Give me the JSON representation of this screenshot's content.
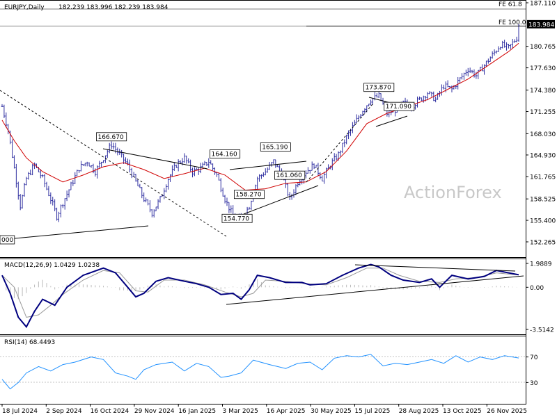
{
  "header": {
    "symbol_timeframe": "EURJPY,Daily",
    "ohlc": "182.239 183.996 182.239 183.984"
  },
  "colors": {
    "background": "#ffffff",
    "candle": "#2e2ea0",
    "ma": "#d00000",
    "macd_line": "#00007f",
    "signal_line": "#999999",
    "rsi_line": "#1e90ff",
    "trendline": "#000000",
    "price_tag_bg": "#000000",
    "price_tag_fg": "#ffffff",
    "watermark": "#c8c8c8"
  },
  "watermark": "ActionForex",
  "chart_data": [
    {
      "type": "line",
      "panel": "price",
      "title": "EURJPY,Daily",
      "ylim": [
        152.265,
        187.11
      ],
      "y_ticks": [
        "187.110",
        "183.984",
        "180.765",
        "177.630",
        "174.380",
        "171.255",
        "168.030",
        "164.930",
        "161.765",
        "158.525",
        "155.400",
        "152.265"
      ],
      "current_price": "183.984",
      "x_dates": [
        "18 Jul 2024",
        "2 Sep 2024",
        "16 Oct 2024",
        "29 Nov 2024",
        "16 Jan 2025",
        "3 Mar 2025",
        "16 Apr 2025",
        "30 May 2025",
        "15 Jul 2025",
        "28 Aug 2025",
        "13 Oct 2025",
        "26 Nov 2025"
      ],
      "series": [
        {
          "type": "close",
          "points": [
            [
              0,
              172.0
            ],
            [
              3,
              168.5
            ],
            [
              6,
              163.0
            ],
            [
              9,
              157.5
            ],
            [
              12,
              161.5
            ],
            [
              16,
              163.5
            ],
            [
              20,
              161.5
            ],
            [
              24,
              158.5
            ],
            [
              27,
              156.0
            ],
            [
              30,
              158.0
            ],
            [
              34,
              160.5
            ],
            [
              38,
              163.0
            ],
            [
              42,
              164.0
            ],
            [
              46,
              162.5
            ],
            [
              50,
              164.5
            ],
            [
              54,
              166.5
            ],
            [
              58,
              165.0
            ],
            [
              62,
              163.5
            ],
            [
              66,
              161.0
            ],
            [
              70,
              158.5
            ],
            [
              74,
              156.5
            ],
            [
              78,
              158.5
            ],
            [
              82,
              161.5
            ],
            [
              86,
              163.5
            ],
            [
              90,
              164.5
            ],
            [
              94,
              162.5
            ],
            [
              98,
              163.0
            ],
            [
              102,
              164.0
            ],
            [
              106,
              162.0
            ],
            [
              110,
              158.5
            ],
            [
              114,
              156.0
            ],
            [
              118,
              155.5
            ],
            [
              122,
              157.5
            ],
            [
              126,
              161.5
            ],
            [
              130,
              162.5
            ],
            [
              134,
              164.0
            ],
            [
              138,
              162.0
            ],
            [
              142,
              158.5
            ],
            [
              146,
              161.0
            ],
            [
              150,
              162.5
            ],
            [
              154,
              163.5
            ],
            [
              158,
              161.5
            ],
            [
              162,
              163.5
            ],
            [
              166,
              165.0
            ],
            [
              170,
              167.5
            ],
            [
              174,
              169.5
            ],
            [
              178,
              171.5
            ],
            [
              182,
              173.0
            ],
            [
              186,
              173.5
            ],
            [
              190,
              171.0
            ],
            [
              194,
              171.5
            ],
            [
              198,
              172.5
            ],
            [
              202,
              172.0
            ],
            [
              206,
              173.0
            ],
            [
              210,
              174.0
            ],
            [
              214,
              173.0
            ],
            [
              218,
              175.0
            ],
            [
              222,
              174.5
            ],
            [
              226,
              176.0
            ],
            [
              230,
              177.5
            ],
            [
              234,
              176.5
            ],
            [
              238,
              178.0
            ],
            [
              242,
              179.5
            ],
            [
              246,
              181.0
            ],
            [
              250,
              180.5
            ],
            [
              254,
              182.0
            ],
            [
              255,
              183.984
            ]
          ]
        },
        {
          "type": "ma",
          "points": [
            [
              0,
              170.0
            ],
            [
              6,
              167.0
            ],
            [
              12,
              164.5
            ],
            [
              20,
              162.5
            ],
            [
              30,
              161.0
            ],
            [
              40,
              162.0
            ],
            [
              50,
              163.2
            ],
            [
              60,
              163.8
            ],
            [
              70,
              162.8
            ],
            [
              80,
              161.5
            ],
            [
              90,
              162.2
            ],
            [
              100,
              163.0
            ],
            [
              110,
              162.0
            ],
            [
              120,
              159.8
            ],
            [
              130,
              160.0
            ],
            [
              140,
              160.8
            ],
            [
              150,
              161.0
            ],
            [
              160,
              162.5
            ],
            [
              170,
              165.5
            ],
            [
              180,
              169.5
            ],
            [
              190,
              171.0
            ],
            [
              200,
              172.0
            ],
            [
              210,
              173.0
            ],
            [
              220,
              174.5
            ],
            [
              230,
              176.0
            ],
            [
              240,
              178.0
            ],
            [
              250,
              180.0
            ],
            [
              255,
              181.2
            ]
          ]
        }
      ],
      "annotations": [
        {
          "label": "166.670",
          "x": 54,
          "y": 166.67
        },
        {
          "label": "164.160",
          "x": 110,
          "y": 164.16
        },
        {
          "label": "165.190",
          "x": 135,
          "y": 165.19
        },
        {
          "label": "161.060",
          "x": 142,
          "y": 161.06
        },
        {
          "label": "158.270",
          "x": 122,
          "y": 158.27
        },
        {
          "label": "154.770",
          "x": 116,
          "y": 154.77
        },
        {
          "label": "173.870",
          "x": 186,
          "y": 173.87
        },
        {
          "label": "171.090",
          "x": 196,
          "y": 171.09
        },
        {
          "label": "FE 61.8",
          "x": 254,
          "y": 187.2
        },
        {
          "label": "FE 100.0",
          "x": 254,
          "y": 184.2
        },
        {
          "label": "000",
          "x": 0,
          "y": 154.9
        }
      ]
    },
    {
      "type": "line",
      "panel": "macd",
      "title": "MACD(12,26,9) 1.0429 1.0238",
      "ylim": [
        -3.5142,
        1.9889
      ],
      "y_ticks": [
        "1.9889",
        "0.00",
        "-3.5142"
      ],
      "series": [
        {
          "name": "MACD",
          "points": [
            [
              0,
              1.0
            ],
            [
              4,
              -0.5
            ],
            [
              8,
              -2.5
            ],
            [
              12,
              -3.3
            ],
            [
              16,
              -2.0
            ],
            [
              20,
              -1.0
            ],
            [
              26,
              -1.5
            ],
            [
              32,
              0.0
            ],
            [
              40,
              1.0
            ],
            [
              50,
              1.6
            ],
            [
              56,
              1.2
            ],
            [
              62,
              0.0
            ],
            [
              66,
              -0.8
            ],
            [
              70,
              -0.5
            ],
            [
              76,
              0.5
            ],
            [
              82,
              0.8
            ],
            [
              90,
              0.5
            ],
            [
              96,
              0.3
            ],
            [
              102,
              0.0
            ],
            [
              108,
              -0.6
            ],
            [
              114,
              -0.5
            ],
            [
              118,
              -1.0
            ],
            [
              122,
              -0.2
            ],
            [
              126,
              1.0
            ],
            [
              132,
              0.8
            ],
            [
              140,
              0.4
            ],
            [
              148,
              0.4
            ],
            [
              152,
              0.2
            ],
            [
              160,
              0.3
            ],
            [
              168,
              1.0
            ],
            [
              176,
              1.6
            ],
            [
              182,
              1.9
            ],
            [
              186,
              1.7
            ],
            [
              192,
              1.0
            ],
            [
              198,
              0.6
            ],
            [
              206,
              0.4
            ],
            [
              212,
              0.7
            ],
            [
              216,
              0.0
            ],
            [
              222,
              1.0
            ],
            [
              230,
              0.7
            ],
            [
              238,
              0.9
            ],
            [
              244,
              1.4
            ],
            [
              250,
              1.2
            ],
            [
              255,
              1.0429
            ]
          ]
        },
        {
          "name": "Signal",
          "points": [
            [
              0,
              1.0
            ],
            [
              6,
              0.0
            ],
            [
              12,
              -2.5
            ],
            [
              18,
              -2.3
            ],
            [
              24,
              -1.5
            ],
            [
              30,
              -0.6
            ],
            [
              40,
              0.6
            ],
            [
              50,
              1.4
            ],
            [
              58,
              1.2
            ],
            [
              66,
              -0.3
            ],
            [
              72,
              -0.4
            ],
            [
              80,
              0.6
            ],
            [
              90,
              0.6
            ],
            [
              100,
              0.2
            ],
            [
              110,
              -0.4
            ],
            [
              118,
              -0.8
            ],
            [
              124,
              -0.5
            ],
            [
              130,
              0.6
            ],
            [
              140,
              0.5
            ],
            [
              150,
              0.3
            ],
            [
              160,
              0.2
            ],
            [
              170,
              0.8
            ],
            [
              180,
              1.6
            ],
            [
              188,
              1.6
            ],
            [
              196,
              1.0
            ],
            [
              206,
              0.5
            ],
            [
              216,
              0.4
            ],
            [
              224,
              0.7
            ],
            [
              234,
              0.8
            ],
            [
              244,
              1.2
            ],
            [
              255,
              1.0238
            ]
          ]
        }
      ]
    },
    {
      "type": "line",
      "panel": "rsi",
      "title": "RSI(14) 68.4493",
      "ylim": [
        0,
        100
      ],
      "y_ticks": [
        "70",
        "30"
      ],
      "series": [
        {
          "name": "RSI",
          "points": [
            [
              0,
              35
            ],
            [
              4,
              20
            ],
            [
              8,
              30
            ],
            [
              12,
              45
            ],
            [
              18,
              55
            ],
            [
              24,
              48
            ],
            [
              30,
              58
            ],
            [
              36,
              62
            ],
            [
              44,
              70
            ],
            [
              50,
              66
            ],
            [
              56,
              45
            ],
            [
              62,
              40
            ],
            [
              66,
              35
            ],
            [
              70,
              50
            ],
            [
              76,
              58
            ],
            [
              84,
              62
            ],
            [
              90,
              48
            ],
            [
              96,
              60
            ],
            [
              102,
              55
            ],
            [
              108,
              38
            ],
            [
              112,
              40
            ],
            [
              118,
              45
            ],
            [
              124,
              65
            ],
            [
              132,
              58
            ],
            [
              140,
              52
            ],
            [
              146,
              60
            ],
            [
              152,
              62
            ],
            [
              158,
              50
            ],
            [
              164,
              68
            ],
            [
              170,
              72
            ],
            [
              176,
              70
            ],
            [
              182,
              74
            ],
            [
              188,
              56
            ],
            [
              194,
              60
            ],
            [
              200,
              58
            ],
            [
              206,
              62
            ],
            [
              212,
              66
            ],
            [
              218,
              60
            ],
            [
              224,
              72
            ],
            [
              230,
              62
            ],
            [
              236,
              70
            ],
            [
              242,
              66
            ],
            [
              248,
              72
            ],
            [
              255,
              68.4
            ]
          ]
        }
      ]
    }
  ]
}
